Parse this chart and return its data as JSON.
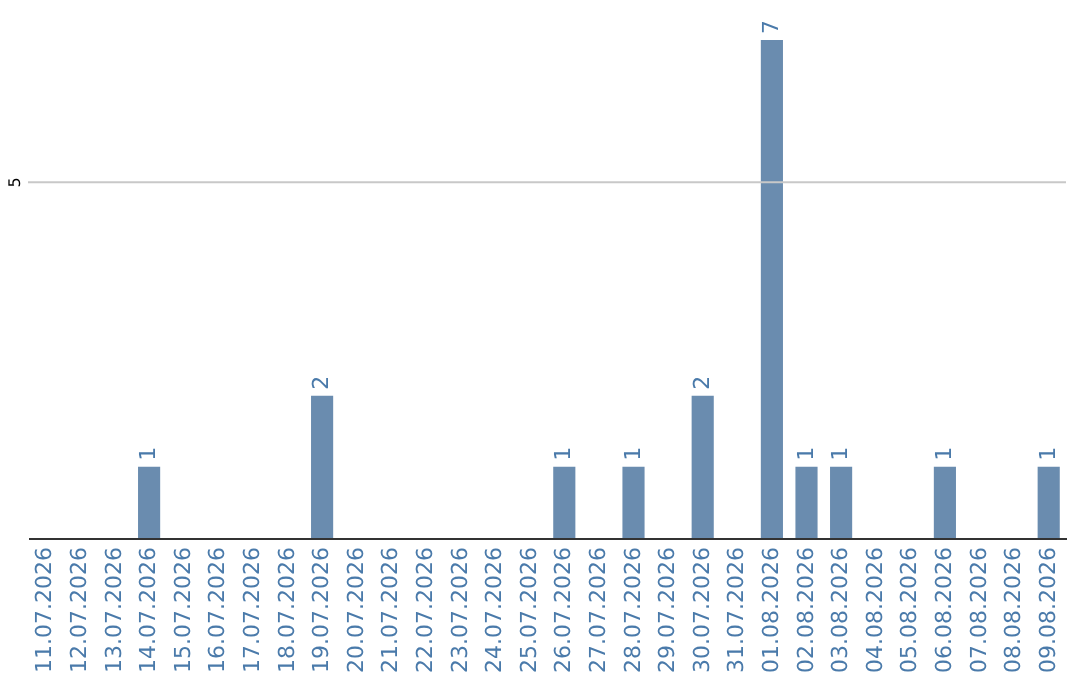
{
  "chart_data": {
    "type": "bar",
    "categories": [
      "11.07.2026",
      "12.07.2026",
      "13.07.2026",
      "14.07.2026",
      "15.07.2026",
      "16.07.2026",
      "17.07.2026",
      "18.07.2026",
      "19.07.2026",
      "20.07.2026",
      "21.07.2026",
      "22.07.2026",
      "23.07.2026",
      "24.07.2026",
      "25.07.2026",
      "26.07.2026",
      "27.07.2026",
      "28.07.2026",
      "29.07.2026",
      "30.07.2026",
      "31.07.2026",
      "01.08.2026",
      "02.08.2026",
      "03.08.2026",
      "04.08.2026",
      "05.08.2026",
      "06.08.2026",
      "07.08.2026",
      "08.08.2026",
      "09.08.2026"
    ],
    "values": [
      0,
      0,
      0,
      1,
      0,
      0,
      0,
      0,
      2,
      0,
      0,
      0,
      0,
      0,
      0,
      1,
      0,
      1,
      0,
      2,
      0,
      7,
      1,
      1,
      0,
      0,
      1,
      0,
      0,
      1
    ],
    "value_labels": [
      null,
      null,
      null,
      "1",
      null,
      null,
      null,
      null,
      "2",
      null,
      null,
      null,
      null,
      null,
      null,
      "1",
      null,
      "1",
      null,
      "2",
      null,
      "7",
      "1",
      "1",
      null,
      null,
      "1",
      null,
      null,
      "1"
    ],
    "color": "#6a8caf",
    "ref_lines": [
      {
        "axis": "y",
        "value": 5,
        "label": "5",
        "color": "#c8c8c8"
      }
    ]
  }
}
